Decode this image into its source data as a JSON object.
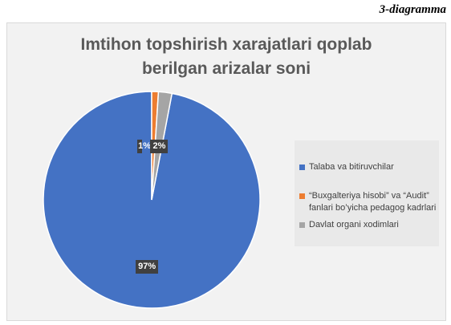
{
  "caption": "3-diagramma",
  "chart_data": {
    "type": "pie",
    "title_lines": [
      "Imtihon topshirish xarajatlari qoplab",
      "berilgan arizalar soni"
    ],
    "categories": [
      "Talaba va bitiruvchilar",
      "“Buxgalteriya hisobi” va “Audit” fanlari bo’yicha pedagog kadrlari",
      "Davlat organi xodimlari"
    ],
    "legend_lines": [
      [
        "Talaba va bitiruvchilar"
      ],
      [
        "“Buxgalteriya hisobi” va “Audit”",
        "fanlari bo’yicha pedagog kadrlari"
      ],
      [
        "Davlat organi xodimlari"
      ]
    ],
    "values": [
      97,
      1,
      2
    ],
    "data_labels": [
      "97%",
      "1%",
      "2%"
    ],
    "colors": [
      "#4472c4",
      "#ed7d31",
      "#a5a5a5"
    ],
    "legend_position": "right"
  }
}
